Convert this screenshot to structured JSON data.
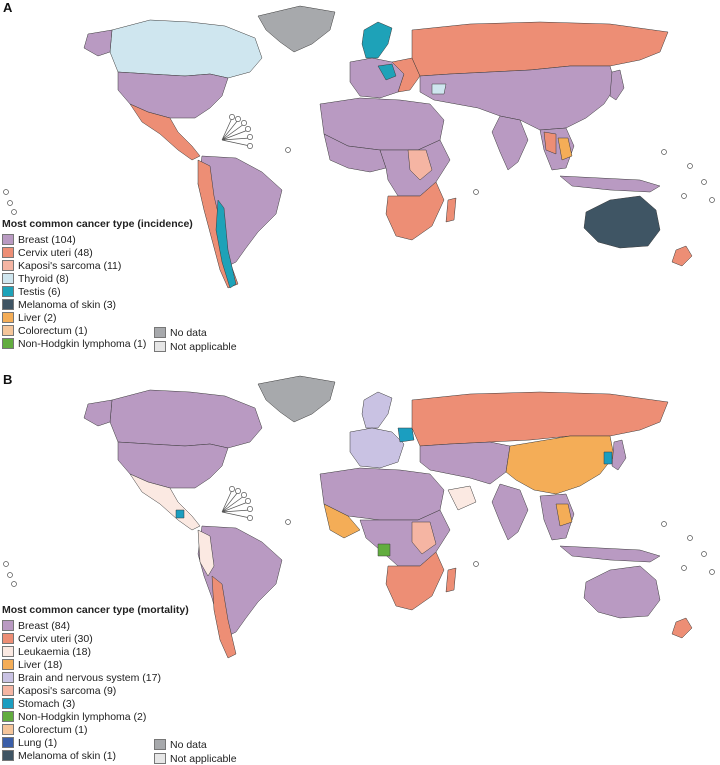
{
  "colors": {
    "breast": "#b99ac2",
    "cervix": "#ed8e75",
    "kaposi": "#f5b5a3",
    "thyroid": "#cfe6ef",
    "testis": "#1ea2b8",
    "melanoma": "#3f5564",
    "liver": "#f4ad57",
    "colorectum": "#f5c59a",
    "nhl": "#62ad3f",
    "leukaemia": "#fbe9e2",
    "brain": "#c9c2e3",
    "stomach": "#1b9ec0",
    "lung": "#3a5ea8",
    "no_data": "#a7a9ac",
    "not_applicable": "#e6e6e6"
  },
  "panel_a": {
    "letter": "A",
    "legend_title": "Most common cancer type (incidence)",
    "items": [
      {
        "label": "Breast (104)",
        "color": "#b99ac2"
      },
      {
        "label": "Cervix uteri (48)",
        "color": "#ed8e75"
      },
      {
        "label": "Kaposi's sarcoma (11)",
        "color": "#f5b5a3"
      },
      {
        "label": "Thyroid (8)",
        "color": "#cfe6ef"
      },
      {
        "label": "Testis (6)",
        "color": "#1ea2b8"
      },
      {
        "label": "Melanoma of skin (3)",
        "color": "#3f5564"
      },
      {
        "label": "Liver (2)",
        "color": "#f4ad57"
      },
      {
        "label": "Colorectum (1)",
        "color": "#f5c59a"
      },
      {
        "label": "Non-Hodgkin lymphoma (1)",
        "color": "#62ad3f"
      }
    ],
    "extras": [
      {
        "label": "No data",
        "color": "#a7a9ac"
      },
      {
        "label": "Not applicable",
        "color": "#e6e6e6"
      }
    ]
  },
  "panel_b": {
    "letter": "B",
    "legend_title": "Most common cancer type (mortality)",
    "items": [
      {
        "label": "Breast (84)",
        "color": "#b99ac2"
      },
      {
        "label": "Cervix uteri (30)",
        "color": "#ed8e75"
      },
      {
        "label": "Leukaemia (18)",
        "color": "#fbe9e2"
      },
      {
        "label": "Liver (18)",
        "color": "#f4ad57"
      },
      {
        "label": "Brain and nervous system (17)",
        "color": "#c9c2e3"
      },
      {
        "label": "Kaposi's sarcoma (9)",
        "color": "#f5b5a3"
      },
      {
        "label": "Stomach (3)",
        "color": "#1b9ec0"
      },
      {
        "label": "Non-Hodgkin lymphoma (2)",
        "color": "#62ad3f"
      },
      {
        "label": "Colorectum (1)",
        "color": "#f5c59a"
      },
      {
        "label": "Lung (1)",
        "color": "#3a5ea8"
      },
      {
        "label": "Melanoma of skin (1)",
        "color": "#3f5564"
      }
    ],
    "extras": [
      {
        "label": "No data",
        "color": "#a7a9ac"
      },
      {
        "label": "Not applicable",
        "color": "#e6e6e6"
      }
    ]
  }
}
